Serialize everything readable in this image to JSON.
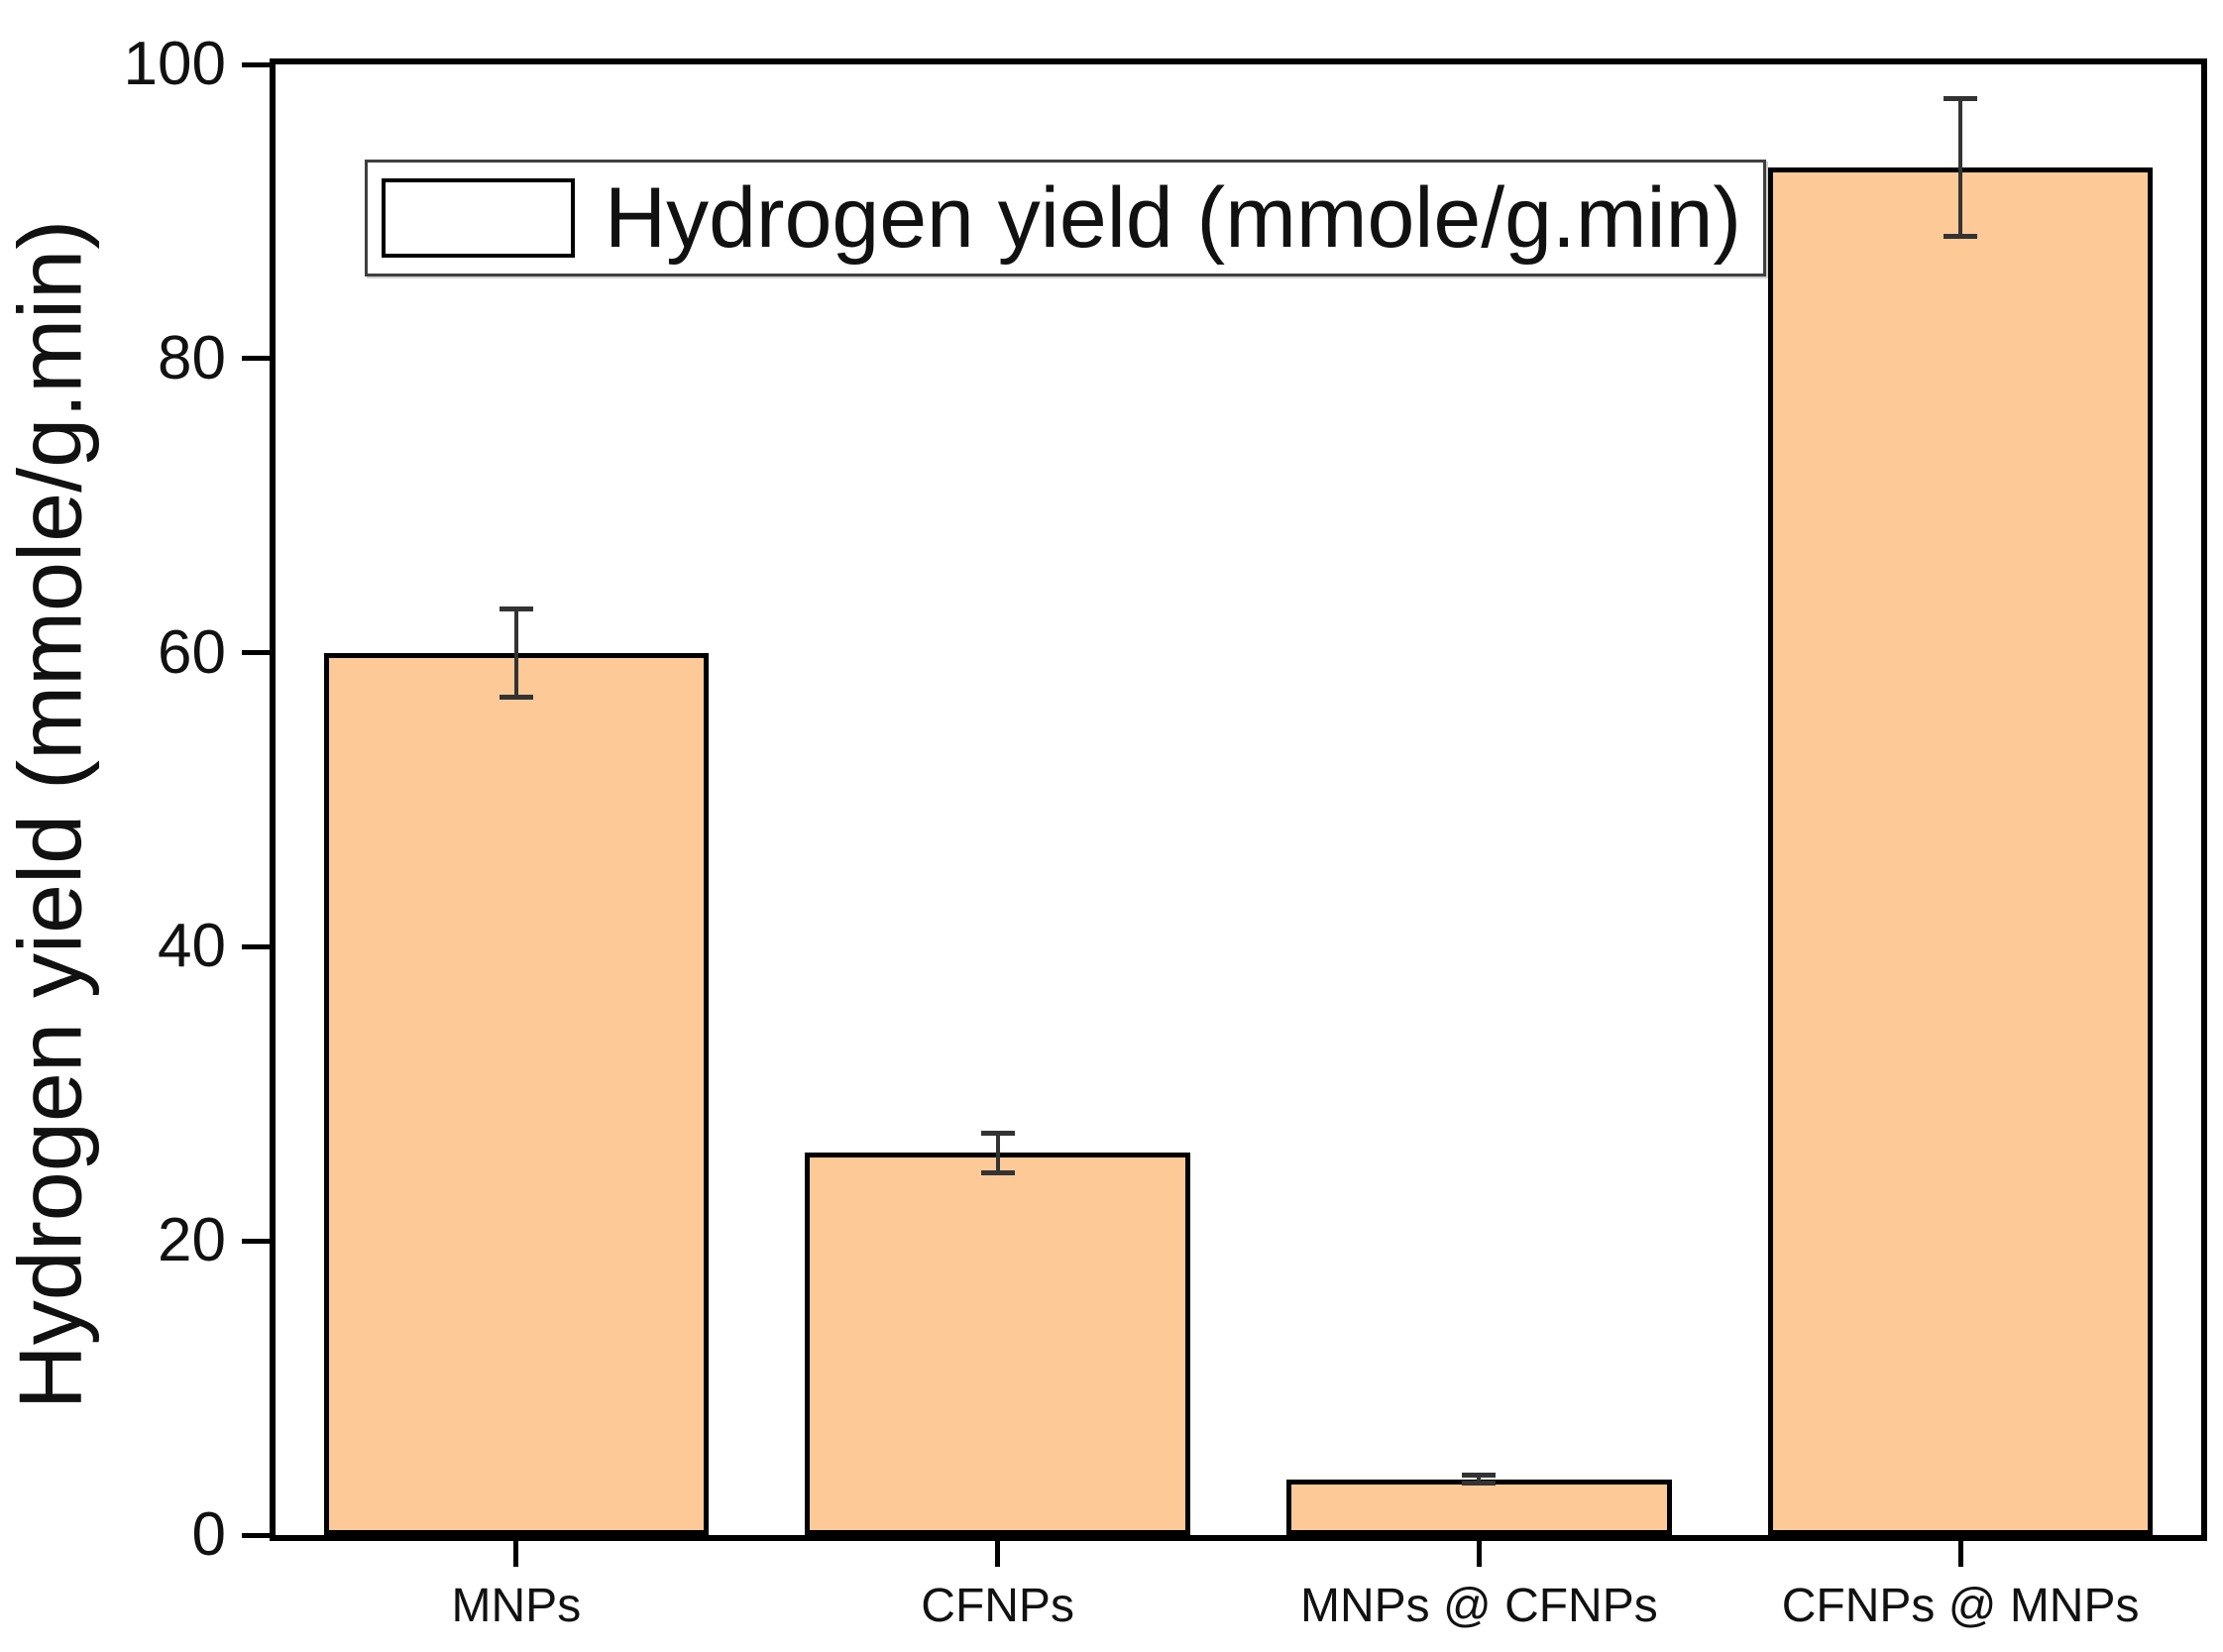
{
  "chart_data": {
    "type": "bar",
    "title": "",
    "categories": [
      "MNPs",
      "CFNPs",
      "MNPs @ CFNPs",
      "CFNPs @ MNPs"
    ],
    "series": [
      {
        "name": "Hydrogen yield (mmole/g.min)",
        "values": [
          60,
          26,
          3.8,
          93
        ],
        "errors": [
          3.0,
          1.35,
          0.25,
          4.7
        ]
      }
    ],
    "xlabel": "",
    "ylabel": "Hydrogen yield (mmole/g.min)",
    "ylim": [
      0,
      100
    ],
    "yticks": [
      0,
      20,
      40,
      60,
      80,
      100
    ],
    "grid": false,
    "legend_position": "top-left-inside",
    "colors": {
      "bar_fill": "#FDCA97",
      "bar_border": "#000000",
      "error_bar": "#333333",
      "axis": "#000000",
      "text": "#111111"
    }
  }
}
